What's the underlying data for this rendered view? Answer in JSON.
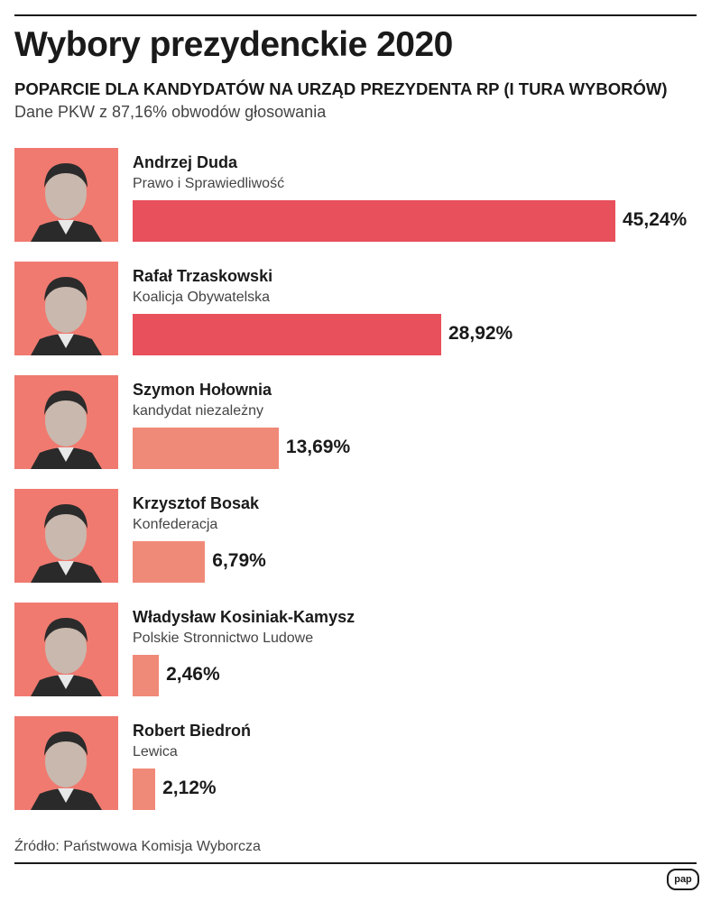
{
  "header": {
    "title": "Wybory prezydenckie 2020",
    "subtitle": "POPARCIE DLA KANDYDATÓW NA URZĄD PREZYDENTA RP (I TURA WYBORÓW)",
    "note": "Dane PKW z 87,16% obwodów głosowania"
  },
  "footer": {
    "source": "Źródło: Państwowa Komisja Wyborcza",
    "logo": "pap"
  },
  "colors": {
    "bar_major": "#e8505b",
    "bar_minor": "#f08a78",
    "photo_bg": "#f07a70"
  },
  "chart_data": {
    "type": "bar",
    "orientation": "horizontal",
    "title": "Wybory prezydenckie 2020",
    "subtitle": "POPARCIE DLA KANDYDATÓW NA URZĄD PREZYDENTA RP (I TURA WYBORÓW)",
    "unit": "%",
    "categories": [
      "Andrzej Duda",
      "Rafał Trzaskowski",
      "Szymon Hołownia",
      "Krzysztof Bosak",
      "Władysław Kosiniak-Kamysz",
      "Robert Biedroń"
    ],
    "values": [
      45.24,
      28.92,
      13.69,
      6.79,
      2.46,
      2.12
    ],
    "grid": false,
    "legend": "none",
    "candidates": [
      {
        "name": "Andrzej Duda",
        "party": "Prawo i Sprawiedliwość",
        "value": 45.24,
        "label": "45,24%",
        "color": "#e8505b"
      },
      {
        "name": "Rafał Trzaskowski",
        "party": "Koalicja Obywatelska",
        "value": 28.92,
        "label": "28,92%",
        "color": "#e8505b"
      },
      {
        "name": "Szymon Hołownia",
        "party": "kandydat niezależny",
        "value": 13.69,
        "label": "13,69%",
        "color": "#f08a78"
      },
      {
        "name": "Krzysztof Bosak",
        "party": "Konfederacja",
        "value": 6.79,
        "label": "6,79%",
        "color": "#f08a78"
      },
      {
        "name": "Władysław Kosiniak-Kamysz",
        "party": "Polskie Stronnictwo Ludowe",
        "value": 2.46,
        "label": "2,46%",
        "color": "#f08a78"
      },
      {
        "name": "Robert Biedroń",
        "party": "Lewica",
        "value": 2.12,
        "label": "2,12%",
        "color": "#f08a78"
      }
    ]
  }
}
